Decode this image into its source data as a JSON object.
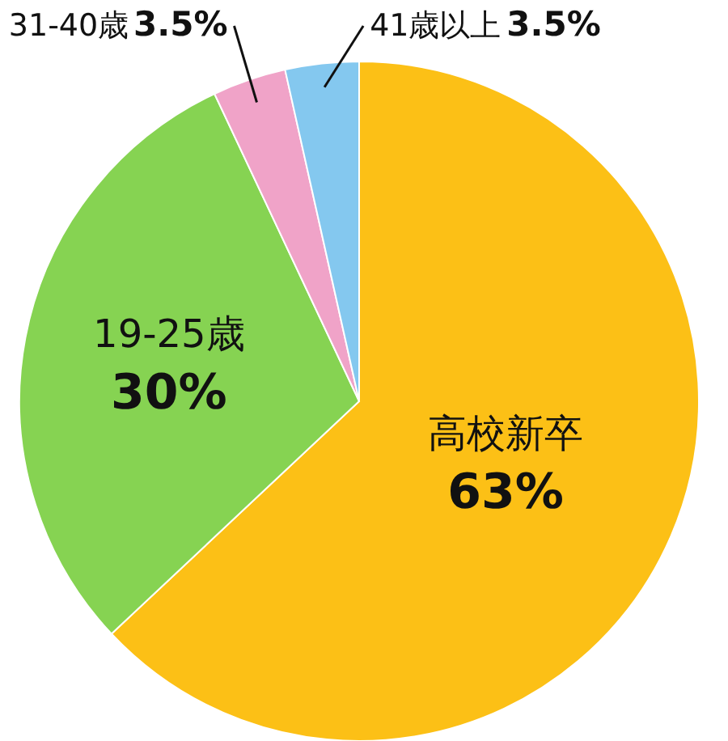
{
  "chart_data": {
    "type": "pie",
    "categories": [
      "高校新卒",
      "19-25歳",
      "31-40歳",
      "41歳以上"
    ],
    "values": [
      63,
      30,
      3.5,
      3.5
    ],
    "colors": [
      "#fcc016",
      "#86d352",
      "#f0a3c8",
      "#84c8ef"
    ],
    "value_labels": [
      "63%",
      "30%",
      "3.5%",
      "3.5%"
    ]
  }
}
